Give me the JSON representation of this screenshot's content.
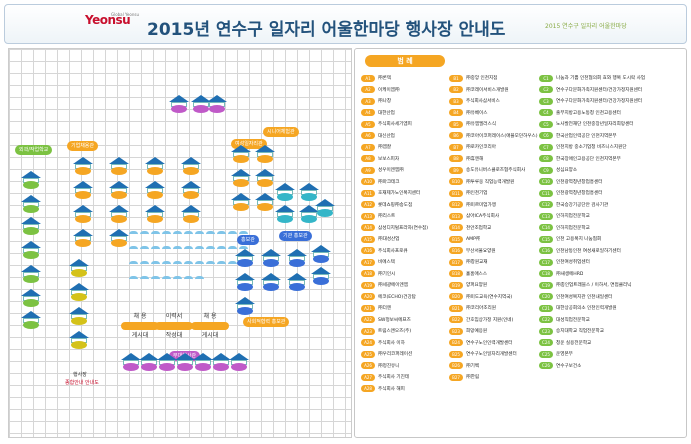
{
  "header": {
    "logo": "Yeonsu",
    "logo_sub": "Global Yeonsu",
    "title": "2015년 연수구 일자리 어울한마당 행사장 안내도",
    "slogan": "2015 연수구 일자리 어울한마당"
  },
  "legend": {
    "title": "범 례",
    "col1": [
      [
        "A1",
        "㈜론텍"
      ],
      [
        "A2",
        "이케이엠㈜"
      ],
      [
        "A3",
        "㈜나창"
      ],
      [
        "A4",
        "대한산업"
      ],
      [
        "A5",
        "주식회사세기엠피"
      ],
      [
        "A6",
        "대신산업"
      ],
      [
        "A7",
        "㈜엠잘"
      ],
      [
        "A8",
        "보보스피자"
      ],
      [
        "A9",
        "성우이엔엠㈜"
      ],
      [
        "A10",
        "㈜마크테크"
      ],
      [
        "A11",
        "호재제가노인복지센터"
      ],
      [
        "A12",
        "롯데쇼핑㈜송도점"
      ],
      [
        "A13",
        "㈜리스트"
      ],
      [
        "A14",
        "삼성디지털프라자(연수점)"
      ],
      [
        "A15",
        "㈜대성산업"
      ],
      [
        "A16",
        "주식회사프로큐"
      ],
      [
        "A17",
        "비에스텍"
      ],
      [
        "A18",
        "㈜기인시"
      ],
      [
        "A19",
        "㈜세광에이엔엠"
      ],
      [
        "A20",
        "에코(ECHO)건강탐"
      ],
      [
        "A21",
        "㈜더엔"
      ],
      [
        "A22",
        "SW정보씨에프즈"
      ],
      [
        "A23",
        "트림스앤오즈(주)"
      ],
      [
        "A24",
        "주식회사 이하"
      ],
      [
        "A25",
        "㈜우리코퍼레이션"
      ],
      [
        "A26",
        "㈜정진유니"
      ],
      [
        "A27",
        "주식회사 기진테"
      ],
      [
        "A28",
        "주식회사 해피"
      ]
    ],
    "col2": [
      [
        "B1",
        "㈜중앙 인천지점"
      ],
      [
        "B2",
        "㈜코레이서비스개발원"
      ],
      [
        "B3",
        "주식회사삼서비스"
      ],
      [
        "B4",
        "㈜유베이스"
      ],
      [
        "B5",
        "㈜유엠엘러스식"
      ],
      [
        "B6",
        "㈜코아이코퍼레이스(애플모던하우스)"
      ],
      [
        "B7",
        "㈜로카인코리아"
      ],
      [
        "B8",
        "㈜휴엔해"
      ],
      [
        "B9",
        "송도유니버스클로즈협주식회사"
      ],
      [
        "B10",
        "㈜투루웅 직업능력개발원"
      ],
      [
        "B11",
        "㈜인천기업"
      ],
      [
        "B12",
        "㈜미르미엄가맹"
      ],
      [
        "B13",
        "삼아ICA주식회사"
      ],
      [
        "B14",
        "천안조업학교"
      ],
      [
        "B15",
        "AMP㈜"
      ],
      [
        "B16",
        "부산서울요양원"
      ],
      [
        "B17",
        "㈜창원교재"
      ],
      [
        "B18",
        "홀홈애스스"
      ],
      [
        "B19",
        "양퍼요양원"
      ],
      [
        "B20",
        "㈜미도교육(연수지역국)"
      ],
      [
        "B21",
        "㈜코리아조리원"
      ],
      [
        "B22",
        "간호임상가정 지원(인네)"
      ],
      [
        "B23",
        "희망예응원"
      ],
      [
        "B24",
        "연수구노인인력개발센터"
      ],
      [
        "B25",
        "연수구노인일자리개발센터"
      ],
      [
        "B26",
        "㈜기벡"
      ],
      [
        "B27",
        "㈜한림"
      ]
    ],
    "col3": [
      [
        "C1",
        "나눔과 기쁨 인천협의회 효와 행복 도시락 사업단"
      ],
      [
        "C2",
        "연수구다문화가족지원센터/건강가정지원센터"
      ],
      [
        "C3",
        "연수구다문화가족지원센터/건강가정지원센터"
      ],
      [
        "C4",
        "출부지방고용노동청 인천고용센터"
      ],
      [
        "C5",
        "노사발전재단 인천중장년일자리희망센터"
      ],
      [
        "C6",
        "한국산업인력공단 인천지역본부"
      ],
      [
        "C7",
        "인천지방 중소기업청 비즈니스지원단"
      ],
      [
        "C8",
        "한국장애인고용공단 인천지역본부"
      ],
      [
        "C9",
        "성심요양소"
      ],
      [
        "C10",
        "인천광역청년창업흥센터"
      ],
      [
        "C11",
        "인천광역청년창업흥센터"
      ],
      [
        "C12",
        "한국승강기공단안 검사기관"
      ],
      [
        "C13",
        "인하지업전문학교"
      ],
      [
        "C14",
        "인하지업전문학교"
      ],
      [
        "C15",
        "인천 고용복지 나눔협회"
      ],
      [
        "C16",
        "인천남동인천 여성새로일하기센터"
      ],
      [
        "C17",
        "인천여성취업센터"
      ],
      [
        "C18",
        "㈜새생에HRD"
      ],
      [
        "C19",
        "㈜충인업트래블스 / 이하서, 면접클리닉"
      ],
      [
        "C20",
        "인천여성복지관 인천내일센터"
      ],
      [
        "C21",
        "대한상공회의소 인천인력개발원"
      ],
      [
        "C22",
        "대성직업전문학교"
      ],
      [
        "C23",
        "승지대학교 직업전문학교"
      ],
      [
        "C24",
        "청운 실용전문학교"
      ],
      [
        "C25",
        "운영본부"
      ],
      [
        "C26",
        "연수구보건소"
      ]
    ]
  },
  "map": {
    "tags": [
      "외곽/작업학교",
      "기업채용관",
      "여성일자리관",
      "시니어체험관",
      "홍보관",
      "기관 홍보관",
      "사회적협력 홍보관",
      "부대행사관"
    ],
    "stage_left": "채 용",
    "stage_mid": "이력서",
    "stage_right": "채 용",
    "board_left": "게시대",
    "board_mid": "작성대",
    "board_right": "게시대",
    "entrance": "행사장",
    "info": "종합안내 안내도"
  }
}
